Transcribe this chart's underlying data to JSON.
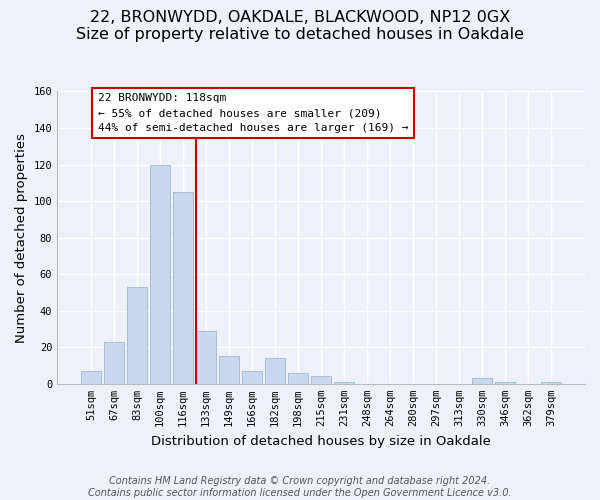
{
  "title": "22, BRONWYDD, OAKDALE, BLACKWOOD, NP12 0GX",
  "subtitle": "Size of property relative to detached houses in Oakdale",
  "xlabel": "Distribution of detached houses by size in Oakdale",
  "ylabel": "Number of detached properties",
  "bar_labels": [
    "51sqm",
    "67sqm",
    "83sqm",
    "100sqm",
    "116sqm",
    "133sqm",
    "149sqm",
    "166sqm",
    "182sqm",
    "198sqm",
    "215sqm",
    "231sqm",
    "248sqm",
    "264sqm",
    "280sqm",
    "297sqm",
    "313sqm",
    "330sqm",
    "346sqm",
    "362sqm",
    "379sqm"
  ],
  "bar_values": [
    7,
    23,
    53,
    120,
    105,
    29,
    15,
    7,
    14,
    6,
    4,
    1,
    0,
    0,
    0,
    0,
    0,
    3,
    1,
    0,
    1
  ],
  "bar_color": "#c8d8ee",
  "bar_edge_color": "#9db8d8",
  "vline_color": "#cc0000",
  "annotation_line1": "22 BRONWYDD: 118sqm",
  "annotation_line2": "← 55% of detached houses are smaller (209)",
  "annotation_line3": "44% of semi-detached houses are larger (169) →",
  "annotation_box_color": "#ffffff",
  "annotation_box_edge_color": "#cc0000",
  "ylim": [
    0,
    160
  ],
  "yticks": [
    0,
    20,
    40,
    60,
    80,
    100,
    120,
    140,
    160
  ],
  "footer_line1": "Contains HM Land Registry data © Crown copyright and database right 2024.",
  "footer_line2": "Contains public sector information licensed under the Open Government Licence v3.0.",
  "background_color": "#eef2f8",
  "grid_color": "#ffffff",
  "title_fontsize": 11.5,
  "axis_label_fontsize": 9.5,
  "tick_fontsize": 7.5,
  "footer_fontsize": 7.0,
  "vline_x": 4.57
}
